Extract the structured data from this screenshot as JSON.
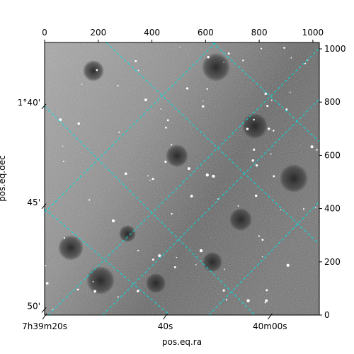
{
  "chart_data": {
    "type": "heatmap",
    "image": {
      "colormap": "gray",
      "pixel_range": [
        0,
        1024
      ]
    },
    "xlabel": "pos.eq.ra",
    "ylabel": "pos.eq.dec",
    "pixel_axes": {
      "top": {
        "range": [
          0,
          1024
        ],
        "ticks": [
          0,
          200,
          400,
          600,
          800,
          1000
        ],
        "labels": [
          "0",
          "200",
          "400",
          "600",
          "800",
          "1000"
        ]
      },
      "right": {
        "range": [
          0,
          1024
        ],
        "ticks": [
          0,
          200,
          400,
          600,
          800,
          1000
        ],
        "labels": [
          "0",
          "200",
          "400",
          "600",
          "800",
          "1000"
        ]
      }
    },
    "ra_ticks": [
      {
        "label": "7h39m20s",
        "x": 0
      },
      {
        "label": "40s",
        "x": 450
      },
      {
        "label": "40m00s",
        "x": 840
      }
    ],
    "dec_ticks": [
      {
        "label": "1°40'",
        "y": 785
      },
      {
        "label": "45'",
        "y": 410
      },
      {
        "label": "50'",
        "y": 20
      }
    ],
    "grid": true,
    "grid_color": "#00e0e0",
    "grid_style": "dashed"
  }
}
